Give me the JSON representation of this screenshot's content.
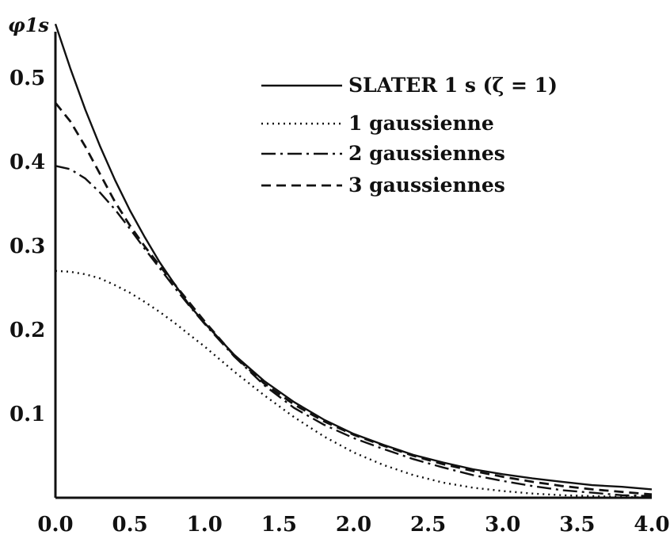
{
  "chart_data": {
    "type": "line",
    "title": "",
    "xlabel": "",
    "ylabel": "φ1s",
    "xlim": [
      0,
      4
    ],
    "ylim": [
      0,
      0.55
    ],
    "xticks": [
      "0.0",
      "0.5",
      "1.0",
      "1.5",
      "2.0",
      "2.5",
      "3.0",
      "3.5",
      "4.0"
    ],
    "yticks": [
      "0.1",
      "0.2",
      "0.3",
      "0.4",
      "0.5"
    ],
    "grid": false,
    "legend_position": "top-right",
    "x": [
      0.0,
      0.1,
      0.2,
      0.3,
      0.4,
      0.5,
      0.6,
      0.7,
      0.8,
      0.9,
      1.0,
      1.2,
      1.4,
      1.6,
      1.8,
      2.0,
      2.2,
      2.4,
      2.6,
      2.8,
      3.0,
      3.2,
      3.4,
      3.6,
      3.8,
      4.0
    ],
    "series": [
      {
        "name": "SLATER 1 s (ζ = 1)",
        "style": "solid",
        "values": [
          0.564,
          0.511,
          0.462,
          0.418,
          0.378,
          0.342,
          0.31,
          0.28,
          0.254,
          0.229,
          0.208,
          0.17,
          0.139,
          0.114,
          0.093,
          0.076,
          0.063,
          0.051,
          0.042,
          0.034,
          0.028,
          0.023,
          0.019,
          0.015,
          0.013,
          0.01
        ]
      },
      {
        "name": "1 gaussienne",
        "style": "dotted",
        "values": [
          0.27,
          0.269,
          0.266,
          0.261,
          0.253,
          0.244,
          0.233,
          0.221,
          0.208,
          0.194,
          0.18,
          0.15,
          0.122,
          0.096,
          0.073,
          0.054,
          0.039,
          0.027,
          0.018,
          0.012,
          0.008,
          0.005,
          0.003,
          0.002,
          0.001,
          0.0
        ]
      },
      {
        "name": "2 gaussiennes",
        "style": "dashdot",
        "values": [
          0.395,
          0.391,
          0.38,
          0.363,
          0.343,
          0.32,
          0.296,
          0.273,
          0.25,
          0.228,
          0.207,
          0.168,
          0.134,
          0.107,
          0.087,
          0.071,
          0.058,
          0.046,
          0.036,
          0.027,
          0.02,
          0.014,
          0.009,
          0.006,
          0.003,
          0.002
        ]
      },
      {
        "name": "3 gaussiennes",
        "style": "dashed",
        "values": [
          0.47,
          0.448,
          0.418,
          0.385,
          0.352,
          0.324,
          0.299,
          0.276,
          0.254,
          0.232,
          0.21,
          0.169,
          0.136,
          0.111,
          0.091,
          0.075,
          0.062,
          0.05,
          0.04,
          0.032,
          0.025,
          0.019,
          0.014,
          0.01,
          0.007,
          0.004
        ]
      }
    ]
  }
}
